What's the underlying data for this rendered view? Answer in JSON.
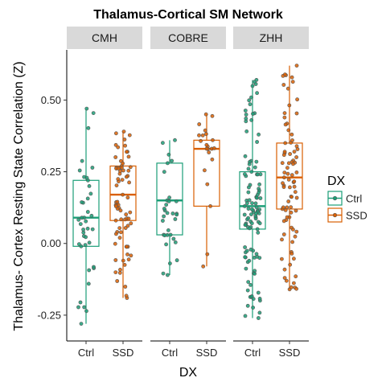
{
  "chart_data": {
    "type": "boxplot",
    "title": "Thalamus-Cortical SM Network",
    "xlabel": "DX",
    "ylabel": "Thalamus- Cortex Resting State Correlation (Z)",
    "ylim": [
      -0.34,
      0.675
    ],
    "yticks": [
      -0.25,
      0.0,
      0.25,
      0.5
    ],
    "ytick_labels": [
      "-0.25",
      "0.00",
      "0.25",
      "0.50"
    ],
    "categories": [
      "Ctrl",
      "SSD"
    ],
    "colors": {
      "Ctrl": "#1b9e77",
      "SSD": "#d95f02"
    },
    "legend": {
      "title": "DX",
      "position": "right",
      "entries": [
        "Ctrl",
        "SSD"
      ]
    },
    "panels": [
      {
        "name": "CMH",
        "boxes": [
          {
            "group": "Ctrl",
            "whisker_low": -0.28,
            "q1": -0.01,
            "median": 0.09,
            "q3": 0.22,
            "whisker_high": 0.47,
            "n_points": 40,
            "seed": 11
          },
          {
            "group": "SSD",
            "whisker_low": -0.19,
            "q1": 0.08,
            "median": 0.17,
            "q3": 0.27,
            "whisker_high": 0.39,
            "n_points": 75,
            "seed": 23
          }
        ]
      },
      {
        "name": "COBRE",
        "boxes": [
          {
            "group": "Ctrl",
            "whisker_low": -0.11,
            "q1": 0.03,
            "median": 0.15,
            "q3": 0.28,
            "whisker_high": 0.36,
            "n_points": 32,
            "seed": 37
          },
          {
            "group": "SSD",
            "whisker_low": -0.08,
            "q1": 0.13,
            "median": 0.33,
            "q3": 0.36,
            "whisker_high": 0.45,
            "n_points": 22,
            "seed": 41
          }
        ]
      },
      {
        "name": "ZHH",
        "boxes": [
          {
            "group": "Ctrl",
            "whisker_low": -0.26,
            "q1": 0.05,
            "median": 0.13,
            "q3": 0.25,
            "whisker_high": 0.57,
            "n_points": 110,
            "seed": 53
          },
          {
            "group": "SSD",
            "whisker_low": -0.16,
            "q1": 0.12,
            "median": 0.23,
            "q3": 0.35,
            "whisker_high": 0.62,
            "n_points": 85,
            "seed": 67
          }
        ]
      }
    ]
  }
}
